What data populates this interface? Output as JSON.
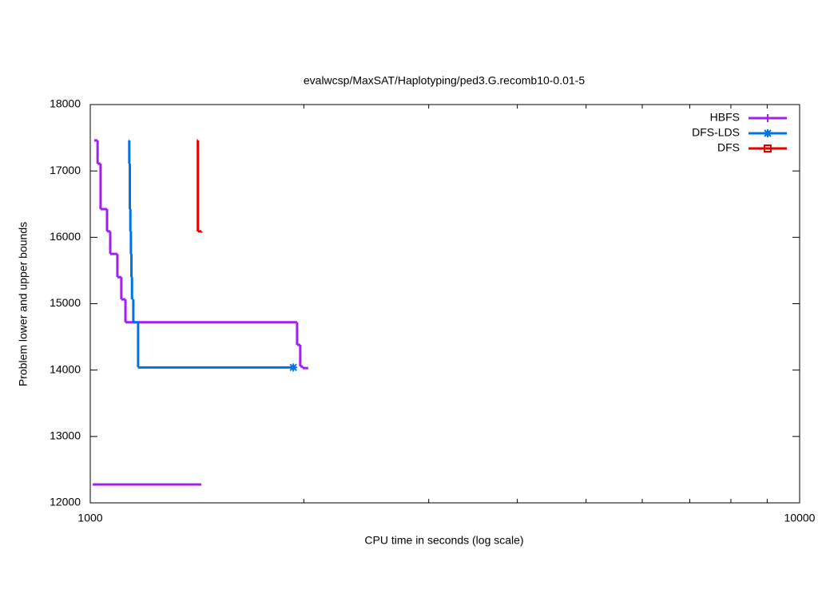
{
  "chart_data": {
    "type": "step",
    "title": "evalwcsp/MaxSAT/Haplotyping/ped3.G.recomb10-0.01-5",
    "x_label": "CPU time in seconds (log scale)",
    "y_label": "Problem lower and upper bounds",
    "xscale": "log",
    "xlim": [
      1000,
      10000
    ],
    "xticks": [
      1000,
      10000
    ],
    "xminorticks": [
      2000,
      3000,
      4000,
      5000,
      6000,
      7000,
      8000,
      9000
    ],
    "ylim": [
      12000,
      18000
    ],
    "yticks": [
      12000,
      13000,
      14000,
      15000,
      16000,
      17000,
      18000
    ],
    "legend": "top-right",
    "series": [
      {
        "name": "HBFS",
        "color": "#a020f0",
        "marker": "plus",
        "x": [
          1013,
          1024,
          1034,
          1056,
          1067,
          1092,
          1106,
          1121,
          1957,
          1977,
          1993,
          2029
        ],
        "values": [
          17460,
          17110,
          16425,
          16090,
          15750,
          15400,
          15065,
          14720,
          14380,
          14055,
          14030,
          14030
        ],
        "lower_x": [
          1008,
          1434
        ],
        "lower_values": [
          12277,
          12277
        ]
      },
      {
        "name": "DFS-LDS",
        "color": "#0072e6",
        "marker": "star",
        "x": [
          1133,
          1135,
          1137,
          1139,
          1141,
          1143,
          1145,
          1150,
          1168,
          1933
        ],
        "values": [
          17460,
          17110,
          16425,
          16090,
          15750,
          15400,
          15065,
          14720,
          14040,
          14040
        ]
      },
      {
        "name": "DFS",
        "color": "#e60000",
        "marker": "square",
        "x": [
          1413,
          1418,
          1434
        ],
        "values": [
          17460,
          16090,
          16070
        ]
      }
    ]
  }
}
